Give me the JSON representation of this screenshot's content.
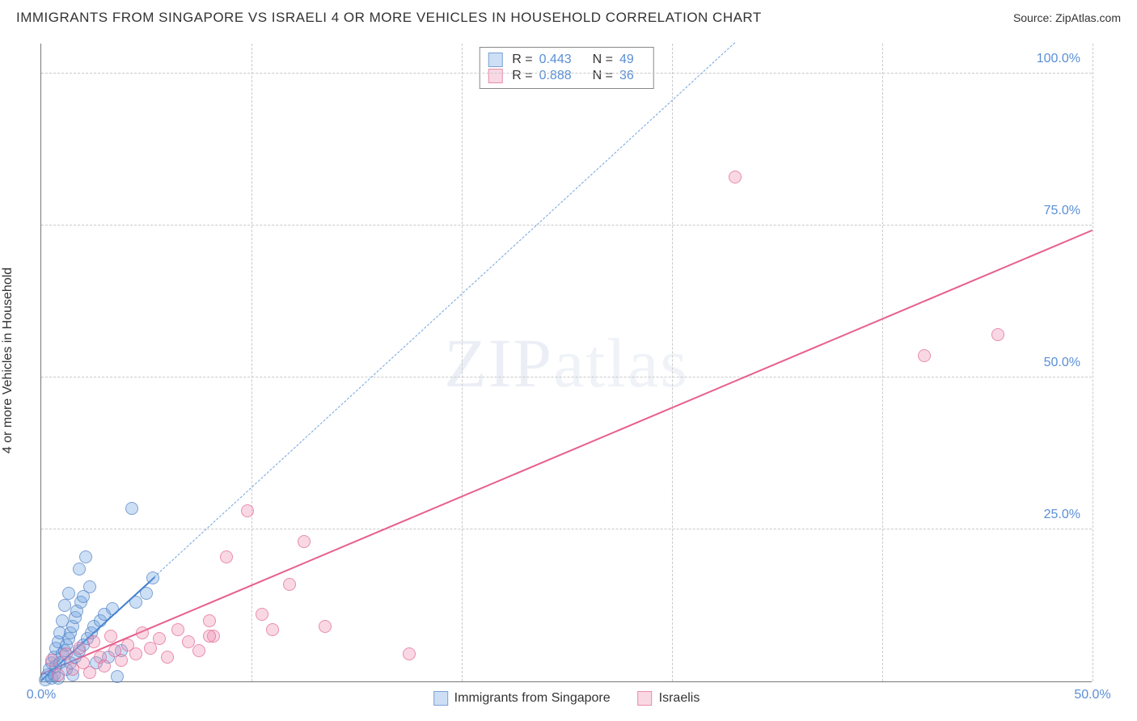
{
  "title": "IMMIGRANTS FROM SINGAPORE VS ISRAELI 4 OR MORE VEHICLES IN HOUSEHOLD CORRELATION CHART",
  "source": "Source: ZipAtlas.com",
  "watermark_a": "ZIP",
  "watermark_b": "atlas",
  "y_axis_title": "4 or more Vehicles in Household",
  "chart": {
    "type": "scatter",
    "background_color": "#ffffff",
    "grid_color": "#c9c9c9",
    "axis_color": "#777777",
    "tick_label_color": "#5a8fd6",
    "xlim": [
      0,
      50
    ],
    "ylim": [
      0,
      105
    ],
    "x_ticks": [
      {
        "v": 0,
        "label": "0.0%"
      },
      {
        "v": 50,
        "label": "50.0%"
      }
    ],
    "y_ticks": [
      {
        "v": 25,
        "label": "25.0%"
      },
      {
        "v": 50,
        "label": "50.0%"
      },
      {
        "v": 75,
        "label": "75.0%"
      },
      {
        "v": 100,
        "label": "100.0%"
      }
    ],
    "x_grid": [
      10,
      20,
      30,
      40,
      50
    ],
    "y_grid": [
      25,
      50,
      75,
      100
    ],
    "marker_radius": 8,
    "marker_border_alpha": 0.55,
    "marker_fill_alpha": 0.35
  },
  "series": [
    {
      "id": "singapore",
      "label": "Immigrants from Singapore",
      "color": "#6fa3e0",
      "fill": "rgba(111,163,224,0.35)",
      "border": "rgba(70,120,190,0.6)",
      "R": "0.443",
      "N": "49",
      "trend": {
        "x1": 0,
        "y1": 0,
        "x2": 5.4,
        "y2": 17,
        "style": "solid",
        "color": "#3f7fd1"
      },
      "extended": {
        "x1": 0,
        "y1": 0,
        "x2": 33,
        "y2": 105,
        "style": "dashed",
        "color": "#6fa3e0"
      },
      "points": [
        [
          0.2,
          0.3
        ],
        [
          0.3,
          1.0
        ],
        [
          0.4,
          2.0
        ],
        [
          0.5,
          0.5
        ],
        [
          0.5,
          3.0
        ],
        [
          0.6,
          4.0
        ],
        [
          0.6,
          1.0
        ],
        [
          0.7,
          5.5
        ],
        [
          0.7,
          2.5
        ],
        [
          0.8,
          6.5
        ],
        [
          0.8,
          0.5
        ],
        [
          0.9,
          3.0
        ],
        [
          0.9,
          8.0
        ],
        [
          1.0,
          4.5
        ],
        [
          1.0,
          10.0
        ],
        [
          1.1,
          5.0
        ],
        [
          1.1,
          12.5
        ],
        [
          1.2,
          6.0
        ],
        [
          1.2,
          2.0
        ],
        [
          1.3,
          7.0
        ],
        [
          1.3,
          14.5
        ],
        [
          1.4,
          8.0
        ],
        [
          1.4,
          3.0
        ],
        [
          1.5,
          9.0
        ],
        [
          1.5,
          1.0
        ],
        [
          1.6,
          10.5
        ],
        [
          1.6,
          4.0
        ],
        [
          1.7,
          11.5
        ],
        [
          1.8,
          18.5
        ],
        [
          1.8,
          5.0
        ],
        [
          1.9,
          13.0
        ],
        [
          2.0,
          6.0
        ],
        [
          2.0,
          14.0
        ],
        [
          2.1,
          20.5
        ],
        [
          2.2,
          7.0
        ],
        [
          2.3,
          15.5
        ],
        [
          2.4,
          8.0
        ],
        [
          2.5,
          9.0
        ],
        [
          2.6,
          3.0
        ],
        [
          2.8,
          10.0
        ],
        [
          3.0,
          11.0
        ],
        [
          3.2,
          4.0
        ],
        [
          3.4,
          12.0
        ],
        [
          3.6,
          0.8
        ],
        [
          3.8,
          5.0
        ],
        [
          4.3,
          28.5
        ],
        [
          4.5,
          13.0
        ],
        [
          5.0,
          14.5
        ],
        [
          5.3,
          17.0
        ]
      ]
    },
    {
      "id": "israelis",
      "label": "Israelis",
      "color": "#ef8fb1",
      "fill": "rgba(239,143,177,0.35)",
      "border": "rgba(220,90,140,0.6)",
      "R": "0.888",
      "N": "36",
      "trend": {
        "x1": 0,
        "y1": 1,
        "x2": 50,
        "y2": 74,
        "style": "solid",
        "color": "#e85f8d"
      },
      "points": [
        [
          0.5,
          3.5
        ],
        [
          0.8,
          1.0
        ],
        [
          1.2,
          4.5
        ],
        [
          1.5,
          2.0
        ],
        [
          1.8,
          5.5
        ],
        [
          2.0,
          3.0
        ],
        [
          2.3,
          1.5
        ],
        [
          2.5,
          6.5
        ],
        [
          2.8,
          4.0
        ],
        [
          3.0,
          2.5
        ],
        [
          3.3,
          7.5
        ],
        [
          3.5,
          5.0
        ],
        [
          3.8,
          3.5
        ],
        [
          4.1,
          6.0
        ],
        [
          4.5,
          4.5
        ],
        [
          4.8,
          8.0
        ],
        [
          5.2,
          5.5
        ],
        [
          5.6,
          7.0
        ],
        [
          6.0,
          4.0
        ],
        [
          6.5,
          8.5
        ],
        [
          7.0,
          6.5
        ],
        [
          7.5,
          5.0
        ],
        [
          8.0,
          10.0
        ],
        [
          8.2,
          7.5
        ],
        [
          8.8,
          20.5
        ],
        [
          9.8,
          28.0
        ],
        [
          10.5,
          11.0
        ],
        [
          11.0,
          8.5
        ],
        [
          11.8,
          16.0
        ],
        [
          12.5,
          23.0
        ],
        [
          13.5,
          9.0
        ],
        [
          17.5,
          4.5
        ],
        [
          33.0,
          83.0
        ],
        [
          42.0,
          53.5
        ],
        [
          45.5,
          57.0
        ],
        [
          8.0,
          7.5
        ]
      ]
    }
  ],
  "stats_box": {
    "R_label": "R =",
    "N_label": "N ="
  },
  "bottom_legend_labels": {
    "singapore": "Immigrants from Singapore",
    "israelis": "Israelis"
  }
}
